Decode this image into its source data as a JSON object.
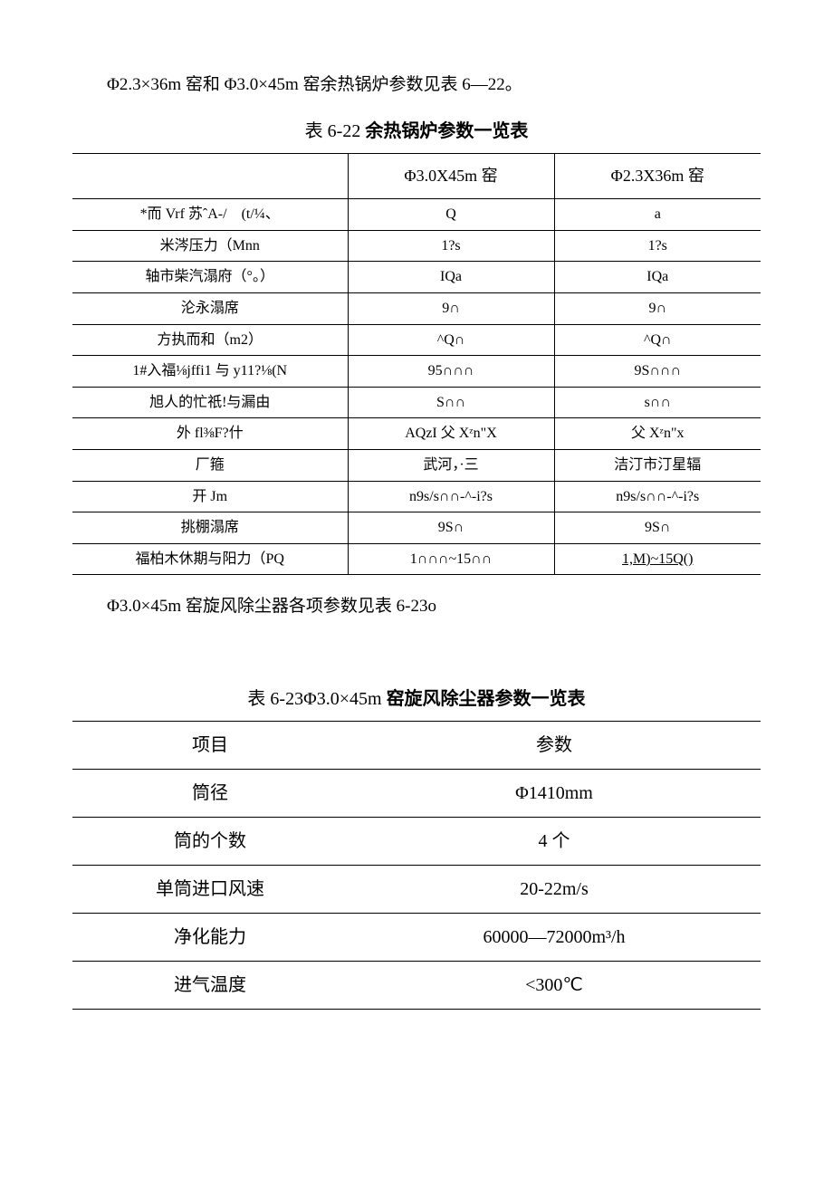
{
  "intro1": "Φ2.3×36m 窑和 Φ3.0×45m 窑余热锅炉参数见表 6—22。",
  "caption1_prefix": "表 6-22 ",
  "caption1_bold": "余热锅炉参数一览表",
  "t622": {
    "head_c2": "Φ3.0X45m 窑",
    "head_c3": "Φ2.3X36m 窑",
    "rows": [
      {
        "c1": "*而 Vrf 苏ˆA-/　(t/¼、",
        "c2": "Q",
        "c3": "a"
      },
      {
        "c1": "米涔压力（Mnn",
        "c2": "1?s",
        "c3": "1?s"
      },
      {
        "c1": "轴市柴汽溻府（°。）",
        "c2": "IQa",
        "c3": "IQa"
      },
      {
        "c1": "沦永溻席",
        "c2": "9∩",
        "c3": "9∩"
      },
      {
        "c1": "方执而和（m2）",
        "c2": "^Q∩",
        "c3": "^Q∩"
      },
      {
        "c1": "1#入福⅛jffi1 与 y11?⅛(N",
        "c2": "95∩∩∩",
        "c3": "9S∩∩∩"
      },
      {
        "c1": "旭人的忙祇!与漏由",
        "c2": "S∩∩",
        "c3": "s∩∩"
      },
      {
        "c1": "外 fl⅜F?什",
        "c2": "AQzI 父 Xᶻn\"X",
        "c3": "父 Xᶻn\"x"
      },
      {
        "c1": "厂箍",
        "c2": "武河，·三",
        "c3": "洁汀市汀星辐"
      },
      {
        "c1": "开 Jm",
        "c2": "n9s/s∩∩-^-i?s",
        "c3": "n9s/s∩∩-^-i?s"
      },
      {
        "c1": "挑棚溻席",
        "c2": "9S∩",
        "c3": "9S∩"
      },
      {
        "c1": "福柏木休期与阳力（PQ",
        "c2": "1∩∩∩~15∩∩",
        "c3": "1,M)~15Q()",
        "c3_underline": true
      }
    ]
  },
  "intro2": "Φ3.0×45m 窑旋风除尘器各项参数见表 6-23o",
  "caption2_prefix": "表 6-23",
  "caption2_rest": "Φ3.0×45m ",
  "caption2_bold": "窑旋风除尘器参数一览表",
  "t623": {
    "rows": [
      {
        "c1": "项目",
        "c2": "参数"
      },
      {
        "c1": "筒径",
        "c2": "Φ1410mm"
      },
      {
        "c1": "筒的个数",
        "c2": "4 个"
      },
      {
        "c1": "单筒进口风速",
        "c2": "20-22m/s"
      },
      {
        "c1": "净化能力",
        "c2": "60000—72000m³/h"
      },
      {
        "c1": "进气温度",
        "c2": "<300℃"
      }
    ]
  }
}
